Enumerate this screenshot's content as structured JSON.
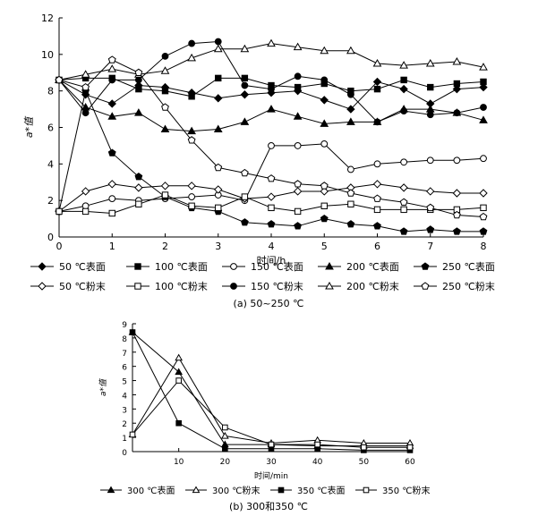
{
  "figure": {
    "caption_a": "(a) 50~250 ℃",
    "caption_b": "(b) 300和350 ℃"
  },
  "chart_data": [
    {
      "type": "line",
      "id": "a",
      "xlabel": "时间/h",
      "ylabel": "a*值",
      "xlim": [
        0,
        8
      ],
      "ylim": [
        0,
        12
      ],
      "xticks": [
        0,
        1,
        2,
        3,
        4,
        5,
        6,
        7,
        8
      ],
      "yticks": [
        0,
        2,
        4,
        6,
        8,
        10,
        12
      ],
      "x": [
        0,
        0.5,
        1,
        1.5,
        2,
        2.5,
        3,
        3.5,
        4,
        4.5,
        5,
        5.5,
        6,
        6.5,
        7,
        7.5,
        8
      ],
      "series": [
        {
          "name": "50 ℃表面",
          "marker": "diamond",
          "fill": "black",
          "values": [
            8.6,
            7.8,
            7.3,
            8.3,
            8.2,
            7.9,
            7.6,
            7.8,
            7.9,
            8.0,
            7.5,
            7.0,
            8.5,
            8.1,
            7.3,
            8.1,
            8.2
          ]
        },
        {
          "name": "100 ℃表面",
          "marker": "square",
          "fill": "black",
          "values": [
            8.6,
            8.7,
            8.7,
            8.1,
            8.0,
            7.7,
            8.7,
            8.7,
            8.3,
            8.2,
            8.4,
            8.0,
            8.1,
            8.6,
            8.2,
            8.4,
            8.5
          ]
        },
        {
          "name": "150 ℃表面",
          "marker": "circle",
          "fill": "white",
          "values": [
            1.4,
            1.7,
            2.1,
            2.0,
            2.1,
            2.2,
            2.3,
            2.0,
            5.0,
            5.0,
            5.1,
            3.7,
            4.0,
            4.1,
            4.2,
            4.2,
            4.3
          ]
        },
        {
          "name": "200 ℃表面",
          "marker": "triangle",
          "fill": "black",
          "values": [
            8.6,
            7.1,
            6.6,
            6.8,
            5.9,
            5.8,
            5.9,
            6.3,
            7.0,
            6.6,
            6.2,
            6.3,
            6.3,
            7.0,
            7.0,
            6.8,
            6.4
          ]
        },
        {
          "name": "250 ℃表面",
          "marker": "pentagon",
          "fill": "black",
          "values": [
            1.4,
            8.0,
            4.6,
            3.3,
            2.2,
            1.6,
            1.4,
            0.8,
            0.7,
            0.6,
            1.0,
            0.7,
            0.6,
            0.3,
            0.4,
            0.3,
            0.3
          ]
        },
        {
          "name": "50 ℃粉末",
          "marker": "diamond",
          "fill": "white",
          "values": [
            1.4,
            2.5,
            2.9,
            2.7,
            2.8,
            2.8,
            2.6,
            2.1,
            2.2,
            2.5,
            2.5,
            2.7,
            2.9,
            2.7,
            2.5,
            2.4,
            2.4
          ]
        },
        {
          "name": "100 ℃粉末",
          "marker": "square",
          "fill": "white",
          "values": [
            1.4,
            1.4,
            1.3,
            1.8,
            2.3,
            1.7,
            1.6,
            2.2,
            1.6,
            1.4,
            1.7,
            1.8,
            1.5,
            1.5,
            1.5,
            1.5,
            1.6
          ]
        },
        {
          "name": "150 ℃粉末",
          "marker": "circle",
          "fill": "black",
          "values": [
            8.6,
            6.8,
            8.6,
            8.6,
            9.9,
            10.6,
            10.7,
            8.3,
            8.1,
            8.8,
            8.6,
            7.8,
            6.3,
            6.9,
            6.7,
            6.8,
            7.1
          ]
        },
        {
          "name": "200 ℃粉末",
          "marker": "triangle",
          "fill": "white",
          "values": [
            8.6,
            8.9,
            9.2,
            8.9,
            9.1,
            9.8,
            10.3,
            10.3,
            10.6,
            10.4,
            10.2,
            10.2,
            9.5,
            9.4,
            9.5,
            9.6,
            9.3
          ]
        },
        {
          "name": "250 ℃粉末",
          "marker": "pentagon",
          "fill": "white",
          "values": [
            8.6,
            8.2,
            9.7,
            9.0,
            7.1,
            5.3,
            3.8,
            3.5,
            3.2,
            2.9,
            2.8,
            2.4,
            2.1,
            1.9,
            1.6,
            1.2,
            1.1
          ]
        }
      ],
      "legend": {
        "position": "bottom",
        "columns": 5
      }
    },
    {
      "type": "line",
      "id": "b",
      "xlabel": "时间/min",
      "ylabel": "a*值",
      "xlim": [
        0,
        60
      ],
      "ylim": [
        0,
        9
      ],
      "xticks": [
        10,
        20,
        30,
        40,
        50,
        60
      ],
      "yticks": [
        0,
        1,
        2,
        3,
        4,
        5,
        6,
        7,
        8,
        9
      ],
      "x": [
        0,
        10,
        20,
        30,
        40,
        50,
        60
      ],
      "series": [
        {
          "name": "300 ℃表面",
          "marker": "triangle",
          "fill": "black",
          "values": [
            8.4,
            5.6,
            0.5,
            0.5,
            0.4,
            0.4,
            0.4
          ]
        },
        {
          "name": "300 ℃粉末",
          "marker": "triangle",
          "fill": "white",
          "values": [
            1.2,
            6.6,
            1.1,
            0.6,
            0.8,
            0.6,
            0.6
          ]
        },
        {
          "name": "350 ℃表面",
          "marker": "square",
          "fill": "black",
          "values": [
            8.4,
            2.0,
            0.2,
            0.2,
            0.2,
            0.1,
            0.1
          ]
        },
        {
          "name": "350 ℃粉末",
          "marker": "square",
          "fill": "white",
          "values": [
            1.2,
            5.0,
            1.7,
            0.5,
            0.5,
            0.3,
            0.3
          ]
        }
      ],
      "legend": {
        "position": "bottom",
        "columns": 4
      }
    }
  ]
}
